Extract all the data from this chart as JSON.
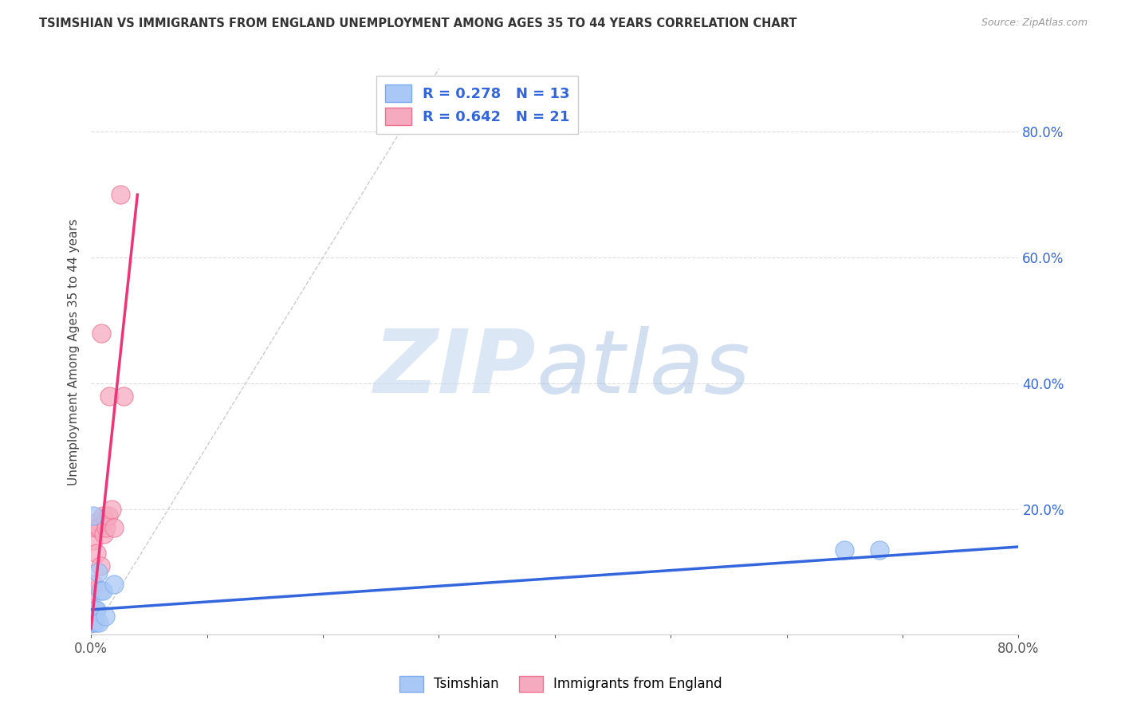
{
  "title": "TSIMSHIAN VS IMMIGRANTS FROM ENGLAND UNEMPLOYMENT AMONG AGES 35 TO 44 YEARS CORRELATION CHART",
  "source": "Source: ZipAtlas.com",
  "ylabel": "Unemployment Among Ages 35 to 44 years",
  "xlim": [
    0.0,
    0.8
  ],
  "ylim": [
    0.0,
    0.9
  ],
  "tsimshian_color": "#aac8f5",
  "tsimshian_edge_color": "#7aabf0",
  "england_color": "#f5aac0",
  "england_edge_color": "#f07090",
  "tsimshian_line_color": "#3366dd",
  "england_line_color": "#ee3377",
  "dashed_line_color": "#cccccc",
  "R_tsimshian": "0.278",
  "N_tsimshian": "13",
  "R_england": "0.642",
  "N_england": "21",
  "legend_text_color": "#3366dd",
  "tsimshian_points_x": [
    0.001,
    0.002,
    0.003,
    0.004,
    0.005,
    0.006,
    0.007,
    0.008,
    0.01,
    0.012,
    0.02,
    0.65,
    0.68
  ],
  "tsimshian_points_y": [
    0.02,
    0.19,
    0.04,
    0.02,
    0.04,
    0.1,
    0.02,
    0.07,
    0.07,
    0.03,
    0.08,
    0.135,
    0.135
  ],
  "england_points_x": [
    0.001,
    0.001,
    0.002,
    0.002,
    0.003,
    0.004,
    0.005,
    0.006,
    0.007,
    0.008,
    0.009,
    0.01,
    0.011,
    0.012,
    0.013,
    0.015,
    0.016,
    0.018,
    0.02,
    0.025,
    0.028
  ],
  "england_points_y": [
    0.02,
    0.07,
    0.08,
    0.15,
    0.04,
    0.17,
    0.13,
    0.18,
    0.17,
    0.11,
    0.48,
    0.19,
    0.16,
    0.18,
    0.17,
    0.19,
    0.38,
    0.2,
    0.17,
    0.7,
    0.38
  ],
  "tsimshian_trend_x": [
    0.0,
    0.8
  ],
  "tsimshian_trend_y": [
    0.04,
    0.14
  ],
  "england_trend_x": [
    0.0,
    0.04
  ],
  "england_trend_y": [
    0.01,
    0.7
  ],
  "dashed_trend_x": [
    0.0,
    0.3
  ],
  "dashed_trend_y": [
    0.0,
    0.9
  ],
  "grid_color": "#dddddd",
  "spine_color": "#cccccc",
  "watermark_zip_color": "#c5d8f0",
  "watermark_atlas_color": "#9ab8e0"
}
